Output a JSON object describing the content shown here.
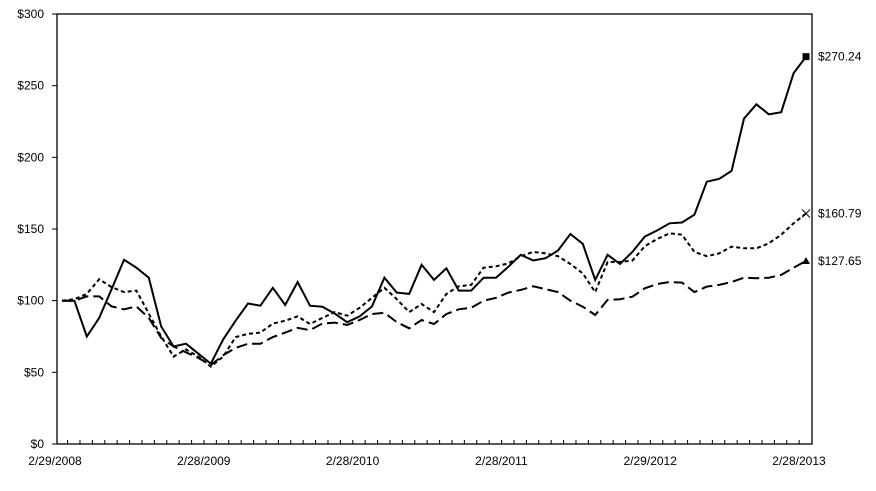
{
  "chart_data": {
    "type": "line",
    "title": "",
    "xlabel": "",
    "ylabel": "",
    "ylim": [
      0,
      300
    ],
    "y_ticks": [
      "$0",
      "$50",
      "$100",
      "$150",
      "$200",
      "$250",
      "$300"
    ],
    "y_tick_values": [
      0,
      50,
      100,
      150,
      200,
      250,
      300
    ],
    "x_tick_labels": [
      "2/29/2008",
      "2/28/2009",
      "2/28/2010",
      "2/28/2011",
      "2/29/2012",
      "2/28/2013"
    ],
    "x_tick_every_n_points": 12,
    "grid": false,
    "legend": "none",
    "series": [
      {
        "style": "solid",
        "marker": "square",
        "end_label": "$270.24",
        "values": [
          100,
          100,
          75,
          88,
          108,
          128.5,
          123,
          116,
          82,
          68,
          70,
          63,
          56,
          73,
          86,
          98,
          96.5,
          109,
          97,
          113,
          96.5,
          95.8,
          91,
          85,
          89,
          96,
          116,
          105.6,
          104.7,
          125,
          114.5,
          122.6,
          107,
          107,
          116,
          116,
          123.7,
          132,
          128,
          129.6,
          135,
          146.5,
          139.6,
          114.5,
          132,
          125.6,
          134,
          144.7,
          149,
          154,
          154.5,
          160,
          183,
          185,
          190.5,
          227,
          237,
          230,
          231.5,
          258.7,
          270.24
        ]
      },
      {
        "style": "short-dash",
        "marker": "x",
        "end_label": "$160.79",
        "values": [
          100,
          101,
          104.7,
          115,
          109.5,
          106,
          107,
          91,
          75,
          61,
          66,
          61,
          54,
          61,
          74.6,
          76.8,
          77.7,
          84,
          86,
          89,
          83.7,
          88,
          92,
          89.5,
          95,
          102,
          109,
          101,
          92,
          97.7,
          92,
          104.7,
          110,
          111,
          123,
          124,
          126,
          131,
          134,
          133,
          131,
          125.6,
          119,
          106,
          127,
          127,
          128,
          138,
          143,
          147,
          146,
          134,
          131,
          133,
          137.7,
          136.5,
          136.5,
          140,
          146,
          154,
          160.79
        ]
      },
      {
        "style": "long-dash",
        "marker": "triangle",
        "end_label": "$127.65",
        "values": [
          100,
          100,
          103,
          103,
          96,
          94,
          96,
          88,
          74,
          68,
          64,
          60,
          55,
          62,
          67,
          70,
          70,
          74.6,
          77.7,
          81,
          79.5,
          84,
          84.7,
          83,
          86.5,
          90.7,
          91.6,
          85,
          80.7,
          86.5,
          83.7,
          90.7,
          94,
          95,
          100,
          102,
          105.6,
          107.5,
          110,
          108,
          106,
          100,
          95.8,
          90,
          100.5,
          101,
          102.8,
          108.6,
          111.6,
          113,
          112.6,
          106,
          109.8,
          111,
          113,
          116,
          115.6,
          116,
          118,
          123,
          127.65
        ]
      }
    ]
  }
}
